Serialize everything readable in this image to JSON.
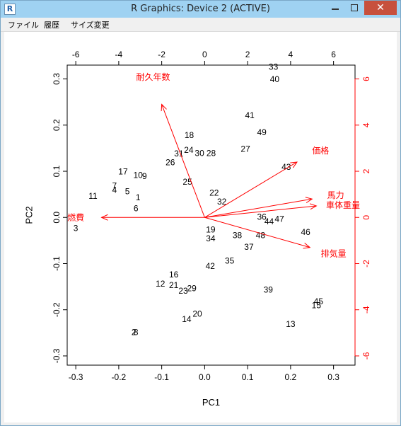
{
  "window": {
    "title": "R Graphics: Device 2 (ACTIVE)",
    "app_icon_letter": "R",
    "close_glyph": "✕"
  },
  "menu": {
    "items": [
      {
        "label": "ファイル"
      },
      {
        "label": "履歴"
      },
      {
        "label": "サイズ変更"
      }
    ]
  },
  "chart_data": {
    "type": "scatter",
    "title": "",
    "xlabel": "PC1",
    "ylabel": "PC2",
    "xlim": [
      -0.32,
      0.35
    ],
    "ylim": [
      -0.32,
      0.33
    ],
    "x_ticks": [
      -0.3,
      -0.2,
      -0.1,
      0.0,
      0.1,
      0.2,
      0.3
    ],
    "x_tick_labels": [
      "-0.3",
      "-0.2",
      "-0.1",
      "0.0",
      "0.1",
      "0.2",
      "0.3"
    ],
    "y_ticks": [
      -0.3,
      -0.2,
      -0.1,
      0.0,
      0.1,
      0.2,
      0.3
    ],
    "y_tick_labels": [
      "-0.3",
      "-0.2",
      "-0.1",
      "0.0",
      "0.1",
      "0.2",
      "0.3"
    ],
    "top_ticks": [
      -6,
      -4,
      -2,
      0,
      2,
      4,
      6
    ],
    "top_tick_labels": [
      "-6",
      "-4",
      "-2",
      "0",
      "2",
      "4",
      "6"
    ],
    "right_ticks": [
      -6,
      -4,
      -2,
      0,
      2,
      4,
      6
    ],
    "right_tick_labels": [
      "-6",
      "-4",
      "-2",
      "0",
      "2",
      "4",
      "6"
    ],
    "secondary_scale": 20,
    "grid": false,
    "arrow_color": "#ff0000",
    "point_color": "#000000",
    "points": [
      {
        "label": "1",
        "x": -0.155,
        "y": 0.042
      },
      {
        "label": "2",
        "x": -0.165,
        "y": -0.25
      },
      {
        "label": "3",
        "x": -0.3,
        "y": -0.025
      },
      {
        "label": "4",
        "x": -0.21,
        "y": 0.058
      },
      {
        "label": "5",
        "x": -0.18,
        "y": 0.055
      },
      {
        "label": "6",
        "x": -0.16,
        "y": 0.018
      },
      {
        "label": "7",
        "x": -0.21,
        "y": 0.067
      },
      {
        "label": "8",
        "x": -0.16,
        "y": -0.25
      },
      {
        "label": "9",
        "x": -0.14,
        "y": 0.088
      },
      {
        "label": "10",
        "x": -0.155,
        "y": 0.09
      },
      {
        "label": "11",
        "x": -0.26,
        "y": 0.045
      },
      {
        "label": "12",
        "x": -0.103,
        "y": -0.145
      },
      {
        "label": "13",
        "x": 0.2,
        "y": -0.232
      },
      {
        "label": "14",
        "x": -0.042,
        "y": -0.222
      },
      {
        "label": "15",
        "x": 0.26,
        "y": -0.192
      },
      {
        "label": "16",
        "x": -0.072,
        "y": -0.125
      },
      {
        "label": "17",
        "x": -0.19,
        "y": 0.098
      },
      {
        "label": "18",
        "x": -0.036,
        "y": 0.177
      },
      {
        "label": "19",
        "x": 0.014,
        "y": -0.028
      },
      {
        "label": "20",
        "x": -0.017,
        "y": -0.21
      },
      {
        "label": "21",
        "x": -0.072,
        "y": -0.148
      },
      {
        "label": "22",
        "x": 0.022,
        "y": 0.052
      },
      {
        "label": "23",
        "x": -0.05,
        "y": -0.16
      },
      {
        "label": "24",
        "x": -0.037,
        "y": 0.145
      },
      {
        "label": "25",
        "x": -0.04,
        "y": 0.076
      },
      {
        "label": "26",
        "x": -0.08,
        "y": 0.118
      },
      {
        "label": "27",
        "x": 0.095,
        "y": 0.147
      },
      {
        "label": "28",
        "x": 0.015,
        "y": 0.138
      },
      {
        "label": "29",
        "x": -0.03,
        "y": -0.155
      },
      {
        "label": "30",
        "x": -0.012,
        "y": 0.138
      },
      {
        "label": "31",
        "x": -0.06,
        "y": 0.137
      },
      {
        "label": "32",
        "x": 0.04,
        "y": 0.033
      },
      {
        "label": "33",
        "x": 0.16,
        "y": 0.325
      },
      {
        "label": "34",
        "x": 0.014,
        "y": -0.047
      },
      {
        "label": "35",
        "x": 0.058,
        "y": -0.095
      },
      {
        "label": "36",
        "x": 0.133,
        "y": 0.0
      },
      {
        "label": "37",
        "x": 0.103,
        "y": -0.065
      },
      {
        "label": "38",
        "x": 0.076,
        "y": -0.04
      },
      {
        "label": "39",
        "x": 0.148,
        "y": -0.158
      },
      {
        "label": "40",
        "x": 0.163,
        "y": 0.298
      },
      {
        "label": "41",
        "x": 0.105,
        "y": 0.22
      },
      {
        "label": "42",
        "x": 0.013,
        "y": -0.107
      },
      {
        "label": "43",
        "x": 0.19,
        "y": 0.108
      },
      {
        "label": "44",
        "x": 0.15,
        "y": -0.01
      },
      {
        "label": "45",
        "x": 0.265,
        "y": -0.183
      },
      {
        "label": "46",
        "x": 0.235,
        "y": -0.033
      },
      {
        "label": "47",
        "x": 0.174,
        "y": -0.005
      },
      {
        "label": "48",
        "x": 0.13,
        "y": -0.04
      },
      {
        "label": "49",
        "x": 0.133,
        "y": 0.183
      }
    ],
    "arrows": [
      {
        "label": "燃費",
        "x": -0.24,
        "y": 0.0
      },
      {
        "label": "耐久年数",
        "x": -0.1,
        "y": 0.245
      },
      {
        "label": "価格",
        "x": 0.215,
        "y": 0.12
      },
      {
        "label": "馬力",
        "x": 0.25,
        "y": 0.04
      },
      {
        "label": "車体重量",
        "x": 0.26,
        "y": 0.025
      },
      {
        "label": "排気量",
        "x": 0.245,
        "y": -0.065
      }
    ],
    "arrow_label_positions": [
      {
        "label": "燃費",
        "x": -0.3,
        "y": -0.002
      },
      {
        "label": "耐久年数",
        "x": -0.12,
        "y": 0.303
      },
      {
        "label": "価格",
        "x": 0.27,
        "y": 0.143
      },
      {
        "label": "馬力",
        "x": 0.305,
        "y": 0.047
      },
      {
        "label": "車体重量",
        "x": 0.322,
        "y": 0.025
      },
      {
        "label": "排気量",
        "x": 0.3,
        "y": -0.08
      }
    ]
  }
}
